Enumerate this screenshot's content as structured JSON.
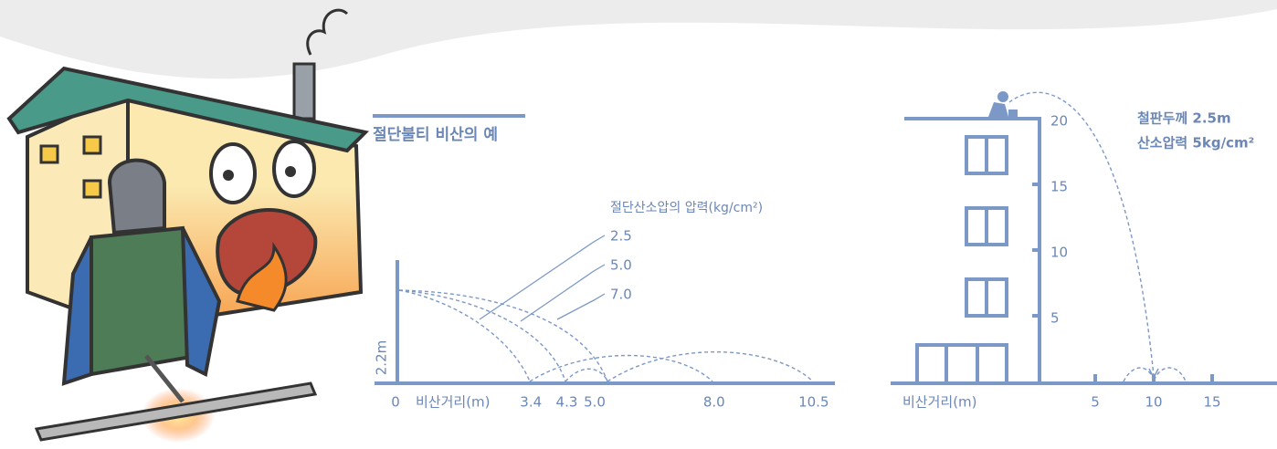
{
  "title": "절단불티 비산의 예",
  "left_diagram": {
    "legend_title": "절단산소압의 압력(kg/cm²)",
    "pressures": [
      "2.5",
      "5.0",
      "7.0"
    ],
    "height_label": "2.2m",
    "x_axis_label": "비산거리(m)",
    "x_ticks": [
      "0",
      "3.4",
      "4.3",
      "5.0",
      "8.0",
      "10.5"
    ]
  },
  "right_diagram": {
    "annotation": [
      "철판두께 2.5m",
      "산소압력 5kg/cm²"
    ],
    "y_ticks": [
      "20",
      "15",
      "10",
      "5"
    ],
    "x_axis_label": "비산거리(m)",
    "x_ticks": [
      "5",
      "10",
      "15"
    ]
  }
}
